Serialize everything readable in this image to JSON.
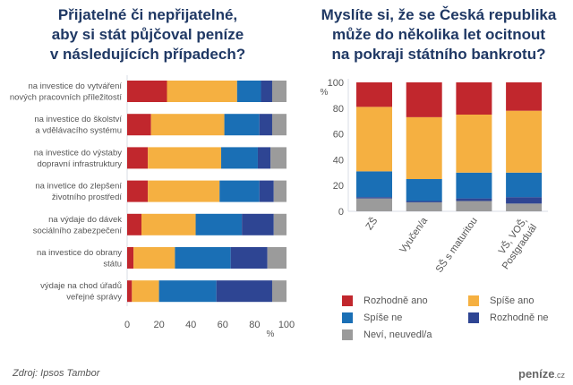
{
  "colors": {
    "Rozhodně ano": "#c1272d",
    "Spíše ano": "#f5b041",
    "Spíše ne": "#1a6fb5",
    "Rozhodně ne": "#2e4593",
    "Neví, neuvedl/a": "#9b9b9b"
  },
  "chart_data": [
    {
      "type": "bar",
      "orientation": "horizontal",
      "stacked": true,
      "title": [
        "Přijatelné či nepřijatelné,",
        "aby si stát půjčoval peníze",
        "v následujících případech?"
      ],
      "categories": [
        [
          "na investice do vytváření",
          "nových pracovních příležitostí"
        ],
        [
          "na investice do školství",
          "a vdělávacího systému"
        ],
        [
          "na investice do výstaby",
          "dopravní infrastruktury"
        ],
        [
          "na invetice do zlepšení",
          "životního prostředí"
        ],
        [
          "na výdaje do dávek",
          "sociálního zabezpečení"
        ],
        [
          "na investice do obrany",
          "státu"
        ],
        [
          "výdaje na chod úřadů",
          "veřejné správy"
        ]
      ],
      "series": [
        {
          "name": "Rozhodně ano",
          "values": [
            25,
            15,
            13,
            13,
            9,
            4,
            3
          ]
        },
        {
          "name": "Spíše ano",
          "values": [
            44,
            46,
            46,
            45,
            34,
            26,
            17
          ]
        },
        {
          "name": "Spíše ne",
          "values": [
            15,
            22,
            23,
            25,
            29,
            35,
            36
          ]
        },
        {
          "name": "Rozhodně ne",
          "values": [
            7,
            8,
            8,
            9,
            20,
            23,
            35
          ]
        },
        {
          "name": "Neví, neuvedl/a",
          "values": [
            9,
            9,
            10,
            8,
            8,
            12,
            9
          ]
        }
      ],
      "xlabel": "%",
      "xlim": [
        0,
        100
      ],
      "xticks": [
        "0",
        "20",
        "40",
        "60",
        "80",
        "100"
      ],
      "grid": false
    },
    {
      "type": "bar",
      "orientation": "vertical",
      "stacked": true,
      "title": [
        "Myslíte si, že se Česká republika",
        "může do několika let ocitnout",
        "na pokraji státního bankrotu?"
      ],
      "categories": [
        [
          "ZŠ"
        ],
        [
          "Vyučen/a"
        ],
        [
          "SŠ s maturitou"
        ],
        [
          "VŠ, VOŠ,",
          "Postgraduál"
        ]
      ],
      "series": [
        {
          "name": "Neví, neuvedl/a",
          "values": [
            10,
            7,
            8,
            6
          ]
        },
        {
          "name": "Rozhodně ne",
          "values": [
            1,
            1,
            2,
            5
          ]
        },
        {
          "name": "Spíše ne",
          "values": [
            20,
            17,
            20,
            19
          ]
        },
        {
          "name": "Spíše ano",
          "values": [
            50,
            48,
            45,
            48
          ]
        },
        {
          "name": "Rozhodně ano",
          "values": [
            19,
            27,
            25,
            22
          ]
        }
      ],
      "ylabel": "%",
      "ylim": [
        0,
        100
      ],
      "yticks": [
        "0",
        "20",
        "40",
        "60",
        "80",
        "100"
      ],
      "grid": false,
      "legend": "bottom-right"
    }
  ],
  "legend": [
    "Rozhodně ano",
    "Spíše ano",
    "Spíše ne",
    "Rozhodně ne",
    "Neví, neuvedl/a"
  ],
  "footer": {
    "source": "Zdroj: Ipsos Tambor",
    "logo": "peníze",
    "logo_tld": ".cz"
  }
}
